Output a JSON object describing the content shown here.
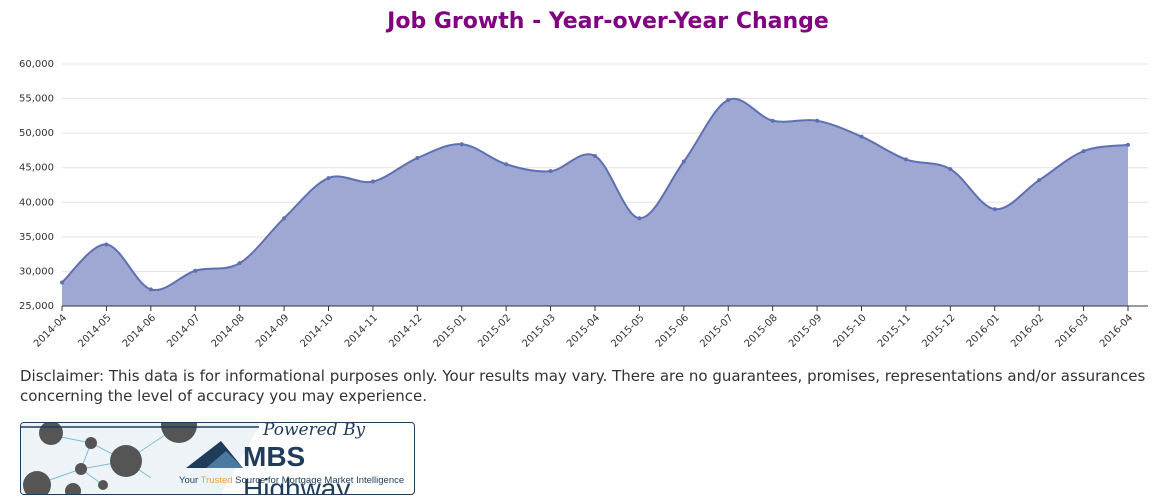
{
  "chart_data": {
    "type": "area",
    "title": "Job Growth - Year-over-Year Change",
    "x": [
      "2014-04",
      "2014-05",
      "2014-06",
      "2014-07",
      "2014-08",
      "2014-09",
      "2014-10",
      "2014-11",
      "2014-12",
      "2015-01",
      "2015-02",
      "2015-03",
      "2015-04",
      "2015-05",
      "2015-06",
      "2015-07",
      "2015-08",
      "2015-09",
      "2015-10",
      "2015-11",
      "2015-12",
      "2016-01",
      "2016-02",
      "2016-03",
      "2016-04"
    ],
    "values": [
      28400,
      33900,
      27400,
      30100,
      31200,
      37700,
      43500,
      43000,
      46400,
      48400,
      45500,
      44500,
      46700,
      37700,
      45900,
      54800,
      51800,
      51800,
      49500,
      46200,
      44800,
      39000,
      43200,
      47400,
      48300
    ],
    "color": "#9ea8d2",
    "line_color": "#5f6fb3",
    "ylim": [
      25000,
      60000
    ],
    "yticks": [
      {
        "value": 25000,
        "label": "25,000"
      },
      {
        "value": 30000,
        "label": "30,000"
      },
      {
        "value": 35000,
        "label": "35,000"
      },
      {
        "value": 40000,
        "label": "40,000"
      },
      {
        "value": 45000,
        "label": "45,000"
      },
      {
        "value": 50000,
        "label": "50,000"
      },
      {
        "value": 55000,
        "label": "55,000"
      },
      {
        "value": 60000,
        "label": "60,000"
      }
    ],
    "grid": true
  },
  "disclaimer": "Disclaimer: This data is for informational purposes only. Your results may vary. There are no guarantees, promises, representations and/or assurances concerning the level of accuracy you may experience.",
  "logo": {
    "powered_by": "Powered By",
    "brand_bold": "MBS",
    "brand_rest": "Highway",
    "tagline_start": "Your",
    "tagline_highlight": "Trusted",
    "tagline_end": "Source for Mortgage Market Intelligence"
  }
}
